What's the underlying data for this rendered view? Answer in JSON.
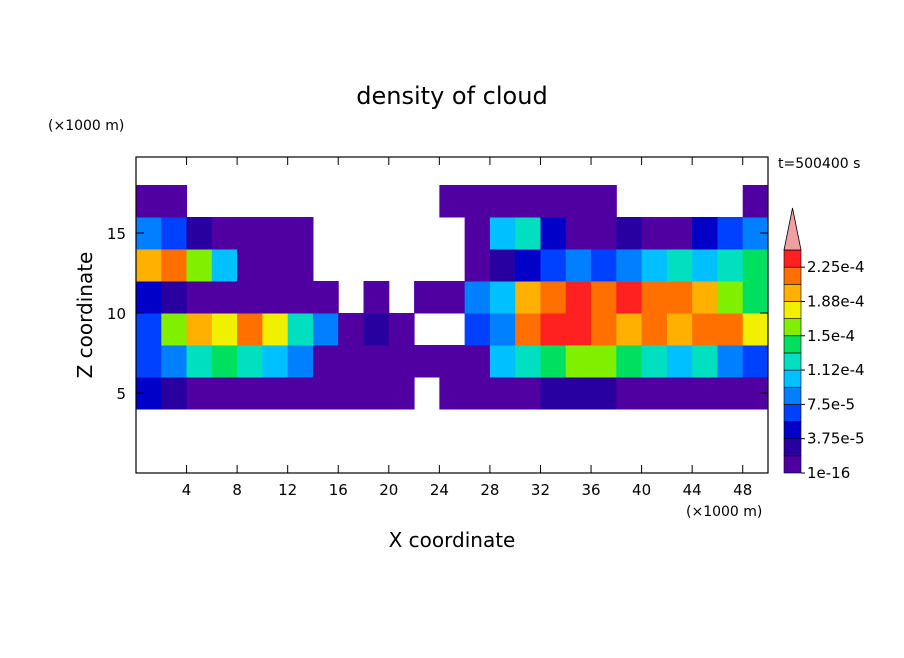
{
  "chart_data": {
    "type": "heatmap",
    "title": "density of cloud",
    "subtitle": "t=500400 s",
    "x_label": "X coordinate",
    "y_label": "Z coordinate",
    "x_unit": "(×1000 m)",
    "y_unit": "(×1000 m)",
    "xlim": [
      0,
      50
    ],
    "ylim": [
      0,
      19.75
    ],
    "xticks": [
      4,
      8,
      12,
      16,
      20,
      24,
      28,
      32,
      36,
      40,
      44,
      48
    ],
    "yticks": [
      5,
      10,
      15
    ],
    "x": [
      1,
      3,
      5,
      7,
      9,
      11,
      13,
      15,
      17,
      19,
      21,
      23,
      25,
      27,
      29,
      31,
      33,
      35,
      37,
      39,
      41,
      43,
      45,
      47,
      49
    ],
    "z": [
      1,
      3,
      5,
      7,
      9,
      11,
      13,
      15,
      17,
      19
    ],
    "values": [
      [
        null,
        null,
        null,
        null,
        null,
        null,
        null,
        null,
        null,
        null,
        null,
        null,
        null,
        null,
        null,
        null,
        null,
        null,
        null,
        null,
        null,
        null,
        null,
        null,
        null
      ],
      [
        null,
        null,
        null,
        null,
        null,
        null,
        null,
        null,
        null,
        null,
        null,
        null,
        null,
        null,
        null,
        null,
        null,
        null,
        null,
        null,
        null,
        null,
        null,
        null,
        null
      ],
      [
        4e-05,
        2.5e-05,
        5e-06,
        5e-06,
        5e-06,
        5e-06,
        5e-06,
        5e-06,
        5e-06,
        5e-06,
        5e-06,
        null,
        5e-06,
        5e-06,
        5e-06,
        5e-06,
        2.5e-05,
        2.5e-05,
        2.5e-05,
        5e-06,
        5e-06,
        5e-06,
        5e-06,
        5e-06,
        5e-06
      ],
      [
        6e-05,
        8e-05,
        0.00012,
        0.00014,
        0.00012,
        0.0001,
        8e-05,
        5e-06,
        5e-06,
        5e-06,
        5e-06,
        5e-06,
        5e-06,
        5e-06,
        0.0001,
        0.00012,
        0.00014,
        0.00016,
        0.00016,
        0.00014,
        0.00012,
        0.0001,
        0.00012,
        8e-05,
        6e-05
      ],
      [
        6e-05,
        0.00016,
        0.000195,
        0.00018,
        0.00021,
        0.00018,
        0.00012,
        8e-05,
        5e-06,
        2.5e-05,
        5e-06,
        null,
        null,
        6e-05,
        8e-05,
        0.00021,
        0.00023,
        0.00023,
        0.00021,
        0.000195,
        0.00021,
        0.000195,
        0.00021,
        0.00021,
        0.00018
      ],
      [
        4e-05,
        2.5e-05,
        5e-06,
        5e-06,
        5e-06,
        5e-06,
        5e-06,
        5e-06,
        null,
        5e-06,
        null,
        5e-06,
        5e-06,
        8e-05,
        0.0001,
        0.000195,
        0.00021,
        0.00023,
        0.00021,
        0.00023,
        0.00021,
        0.00021,
        0.000195,
        0.00016,
        0.00014
      ],
      [
        0.000195,
        0.00021,
        0.00016,
        0.0001,
        5e-06,
        5e-06,
        5e-06,
        null,
        null,
        null,
        null,
        null,
        null,
        5e-06,
        2.5e-05,
        4e-05,
        6e-05,
        8e-05,
        6e-05,
        8e-05,
        0.0001,
        0.00012,
        0.0001,
        0.00012,
        0.00014
      ],
      [
        8e-05,
        6e-05,
        2.5e-05,
        5e-06,
        5e-06,
        5e-06,
        5e-06,
        null,
        null,
        null,
        null,
        null,
        null,
        5e-06,
        0.0001,
        0.00012,
        4e-05,
        5e-06,
        5e-06,
        2.5e-05,
        5e-06,
        5e-06,
        4e-05,
        6e-05,
        8e-05
      ],
      [
        5e-06,
        5e-06,
        null,
        null,
        null,
        null,
        null,
        null,
        null,
        null,
        null,
        null,
        5e-06,
        5e-06,
        5e-06,
        5e-06,
        5e-06,
        5e-06,
        5e-06,
        null,
        null,
        null,
        null,
        null,
        5e-06
      ],
      [
        null,
        null,
        null,
        null,
        null,
        null,
        null,
        null,
        null,
        null,
        null,
        null,
        null,
        null,
        null,
        null,
        null,
        null,
        null,
        null,
        null,
        null,
        null,
        null,
        null
      ]
    ],
    "colorbar": {
      "levels": [
        1e-16,
        1.875e-05,
        3.75e-05,
        5.625e-05,
        7.5e-05,
        9.375e-05,
        0.0001125,
        0.00013125,
        0.00015,
        0.00016875,
        0.0001875,
        0.00020625,
        0.000225,
        0.00024375
      ],
      "colors": [
        "#5000a0",
        "#2800a0",
        "#0000c8",
        "#0040ff",
        "#0080ff",
        "#00c0ff",
        "#00e0c0",
        "#00e060",
        "#80f000",
        "#f0f000",
        "#ffb000",
        "#ff7000",
        "#ff2020"
      ],
      "extend_color": "#f0a0a0",
      "ticks": [
        {
          "value": 1e-16,
          "label": "1e-16"
        },
        {
          "value": 3.75e-05,
          "label": "3.75e-5"
        },
        {
          "value": 7.5e-05,
          "label": "7.5e-5"
        },
        {
          "value": 0.0001125,
          "label": "1.12e-4"
        },
        {
          "value": 0.00015,
          "label": "1.5e-4"
        },
        {
          "value": 0.0001875,
          "label": "1.88e-4"
        },
        {
          "value": 0.000225,
          "label": "2.25e-4"
        }
      ]
    }
  }
}
